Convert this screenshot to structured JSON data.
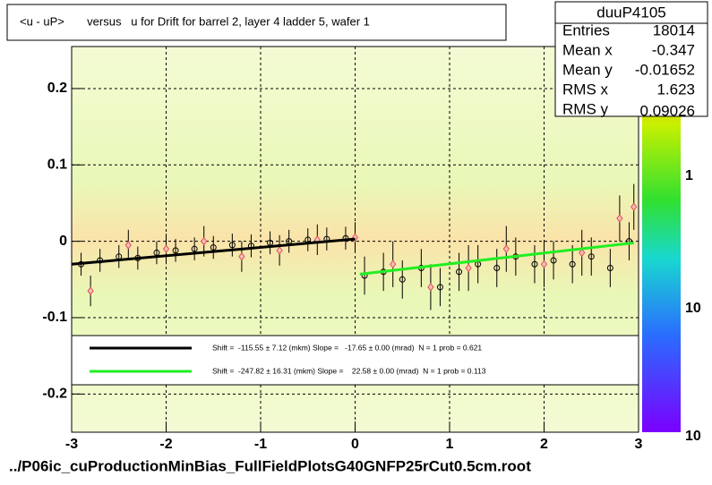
{
  "chart_data": {
    "type": "scatter",
    "title": "<u - uP>       versus   u for Drift for barrel 2, layer 4 ladder 5, wafer 1",
    "footer": "../P06ic_cuProductionMinBias_FullFieldPlotsG40GNFP25rCut0.5cm.root",
    "xlim": [
      -3,
      3
    ],
    "ylim": [
      -0.25,
      0.255
    ],
    "xticks": [
      -3,
      -2,
      -1,
      0,
      1,
      2,
      3
    ],
    "yticks": [
      -0.2,
      -0.1,
      0,
      0.1,
      0.2
    ],
    "grid": true,
    "series": [
      {
        "color": "#000000",
        "marker": "circle",
        "x": [
          -2.9,
          -2.7,
          -2.5,
          -2.3,
          -2.1,
          -1.9,
          -1.7,
          -1.5,
          -1.3,
          -1.1,
          -0.9,
          -0.7,
          -0.5,
          -0.3,
          -0.1,
          0.1,
          0.3,
          0.5,
          0.7,
          0.9,
          1.1,
          1.3,
          1.5,
          1.7,
          1.9,
          2.1,
          2.3,
          2.5,
          2.7,
          2.9
        ],
        "values": [
          -0.03,
          -0.025,
          -0.02,
          -0.022,
          -0.015,
          -0.012,
          -0.01,
          -0.008,
          -0.005,
          -0.006,
          -0.002,
          0.0,
          0.002,
          0.003,
          0.004,
          -0.045,
          -0.04,
          -0.05,
          -0.035,
          -0.06,
          -0.04,
          -0.03,
          -0.035,
          -0.02,
          -0.03,
          -0.025,
          -0.03,
          -0.02,
          -0.035,
          0.0
        ],
        "errors": [
          0.015,
          0.015,
          0.015,
          0.015,
          0.015,
          0.015,
          0.015,
          0.015,
          0.015,
          0.015,
          0.015,
          0.015,
          0.015,
          0.015,
          0.015,
          0.025,
          0.025,
          0.025,
          0.025,
          0.025,
          0.025,
          0.025,
          0.025,
          0.025,
          0.025,
          0.025,
          0.025,
          0.025,
          0.025,
          0.025
        ]
      },
      {
        "color": "#e05050",
        "marker": "diamond",
        "x": [
          -2.8,
          -2.4,
          -2.0,
          -1.6,
          -1.2,
          -0.8,
          -0.4,
          0.0,
          0.4,
          0.8,
          1.2,
          1.6,
          2.0,
          2.4,
          2.8,
          2.95
        ],
        "values": [
          -0.065,
          -0.005,
          -0.01,
          0.0,
          -0.02,
          -0.012,
          0.002,
          0.005,
          -0.03,
          -0.06,
          -0.035,
          -0.01,
          -0.03,
          -0.015,
          0.03,
          0.045
        ],
        "errors": [
          0.02,
          0.02,
          0.02,
          0.02,
          0.02,
          0.02,
          0.02,
          0.02,
          0.03,
          0.03,
          0.03,
          0.03,
          0.03,
          0.03,
          0.03,
          0.03
        ]
      }
    ],
    "fits": [
      {
        "color": "#000000",
        "x": [
          -3,
          0
        ],
        "values": [
          -0.03,
          0.003
        ],
        "label": "Shift =  -115.55 ± 7.12 (mkm) Slope =   -17.65 ± 0.00 (mrad)  N = 1 prob = 0.621"
      },
      {
        "color": "#22ee22",
        "x": [
          0.05,
          2.95
        ],
        "values": [
          -0.043,
          -0.002
        ],
        "label": "Shift =  -247.82 ± 16.31 (mkm) Slope =    22.58 ± 0.00 (mrad)  N = 1 prob = 0.113"
      }
    ],
    "stats": {
      "name": "duuP4105",
      "rows": [
        [
          "Entries",
          18014
        ],
        [
          "Mean x",
          -0.347
        ],
        [
          "Mean y",
          -0.01652
        ],
        [
          "RMS x",
          1.623
        ],
        [
          "RMS y",
          0.09026
        ]
      ]
    },
    "color_axis_labels": [
      "1",
      "10",
      "10"
    ]
  }
}
